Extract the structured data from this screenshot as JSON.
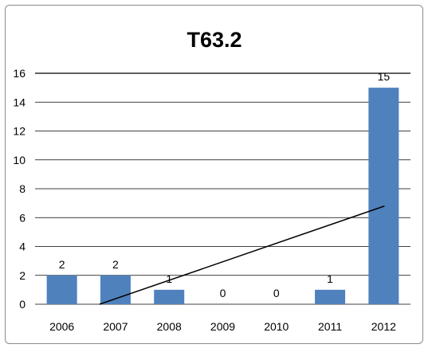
{
  "chart_data": {
    "type": "bar",
    "title": "T63.2",
    "categories": [
      "2006",
      "2007",
      "2008",
      "2009",
      "2010",
      "2011",
      "2012"
    ],
    "values": [
      2,
      2,
      1,
      0,
      0,
      1,
      15
    ],
    "data_labels": [
      "2",
      "2",
      "1",
      "0",
      "0",
      "1",
      "15"
    ],
    "ylim": [
      0,
      16
    ],
    "yticks": [
      "0",
      "2",
      "4",
      "6",
      "8",
      "10",
      "12",
      "14",
      "16"
    ],
    "trendline": {
      "type": "linear",
      "x_start": "2007",
      "y_start": 0,
      "x_end": "2012",
      "y_end": 6.8
    },
    "grid": true,
    "legend": "none",
    "colors": {
      "bar": "#4f81bd",
      "gridline": "#000000",
      "trendline": "#000000"
    }
  }
}
